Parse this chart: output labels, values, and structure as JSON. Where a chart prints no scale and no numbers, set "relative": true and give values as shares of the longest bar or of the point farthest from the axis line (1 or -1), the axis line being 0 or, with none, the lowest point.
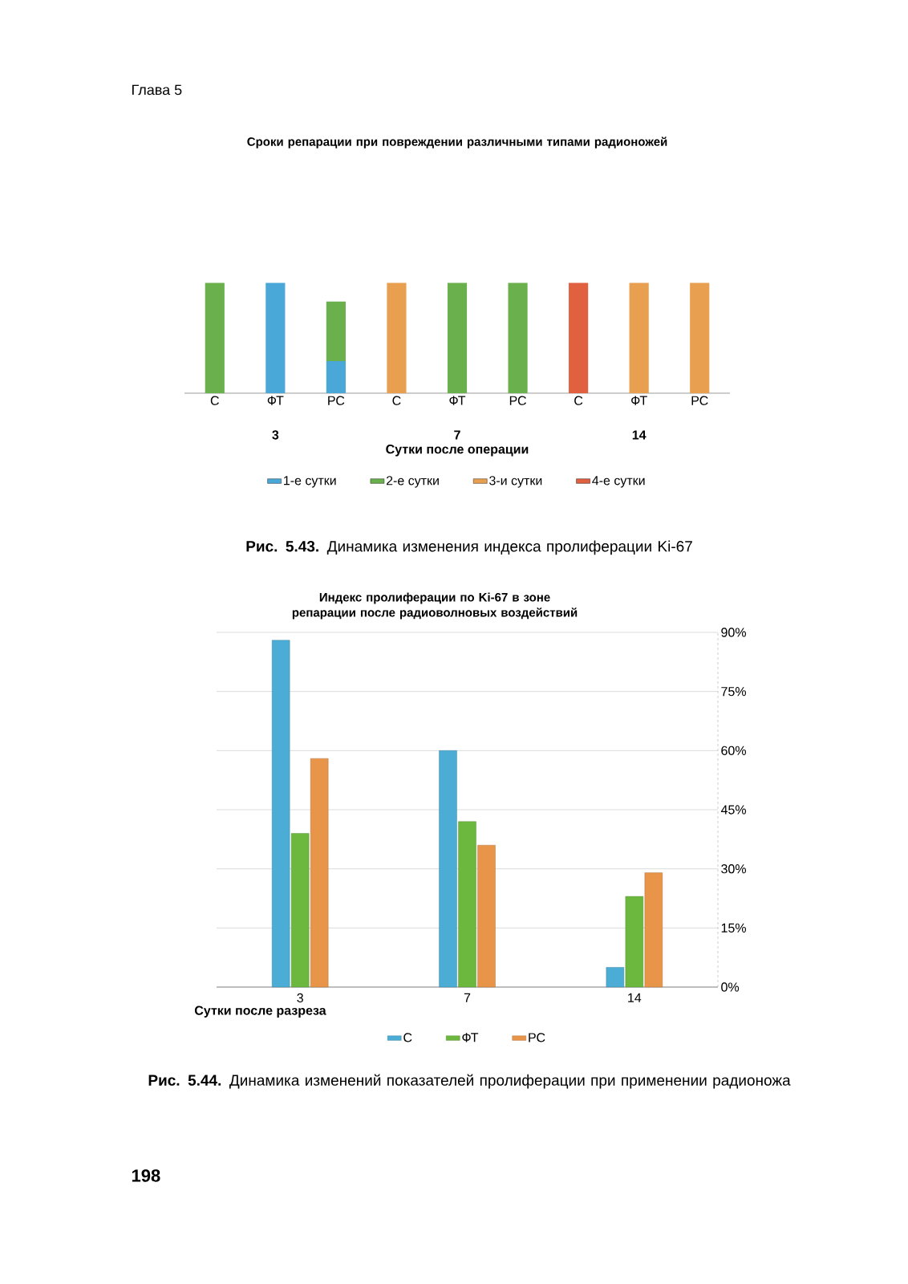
{
  "chart_data": [
    {
      "type": "bar",
      "title": "Сроки репарации при повреждении различными типами радионожей",
      "xlabel": "Сутки после операции",
      "categories": [
        "С",
        "ФТ",
        "РС",
        "С",
        "ФТ",
        "РС",
        "С",
        "ФТ",
        "РС"
      ],
      "stacked": true,
      "relative": true,
      "legend": "bottom",
      "series": [
        {
          "name": "1-е сутки",
          "color": "#4aa8d8",
          "values": [
            null,
            1,
            0.29,
            null,
            null,
            null,
            null,
            null,
            null
          ]
        },
        {
          "name": "2-е сутки",
          "color": "#6ab04c",
          "values": [
            1,
            null,
            0.54,
            null,
            1,
            1,
            null,
            null,
            null
          ]
        },
        {
          "name": "3-и сутки",
          "color": "#e8a050",
          "values": [
            null,
            null,
            null,
            1,
            null,
            null,
            null,
            1,
            1
          ]
        },
        {
          "name": "4-е сутки",
          "color": "#e06040",
          "values": [
            null,
            null,
            null,
            null,
            null,
            null,
            1,
            null,
            null
          ]
        }
      ],
      "annotations": [
        "3",
        "7",
        "14",
        "**Рис. 5.43.** Динамика изменения индекса пролиферации Ki-67",
        "Глава 5"
      ]
    },
    {
      "type": "bar",
      "title": "Индекс пролиферации по Ki-67 в зоне репарации после радиоволновых воздействий",
      "xlabel": "Сутки после разреза",
      "categories": [
        "3",
        "7",
        "14"
      ],
      "ylim": [
        0,
        90
      ],
      "yticks": [
        {
          "value": 0,
          "label": "0%"
        },
        {
          "value": 15,
          "label": "15%"
        },
        {
          "value": 30,
          "label": "30%"
        },
        {
          "value": 45,
          "label": "45%"
        },
        {
          "value": 60,
          "label": "60%"
        },
        {
          "value": 75,
          "label": "75%"
        },
        {
          "value": 90,
          "label": "90%"
        }
      ],
      "grid": "y",
      "legend": "bottom",
      "series": [
        {
          "name": "С",
          "color": "#4bacd6",
          "values": [
            88,
            60,
            5
          ]
        },
        {
          "name": "ФТ",
          "color": "#6cb83e",
          "values": [
            39,
            42,
            23
          ]
        },
        {
          "name": "РС",
          "color": "#e8954a",
          "values": [
            58,
            36,
            29
          ]
        }
      ],
      "annotations": [
        "**Рис. 5.44.** Динамика изменений показателей пролиферации при применении радионожа",
        "198"
      ]
    }
  ]
}
